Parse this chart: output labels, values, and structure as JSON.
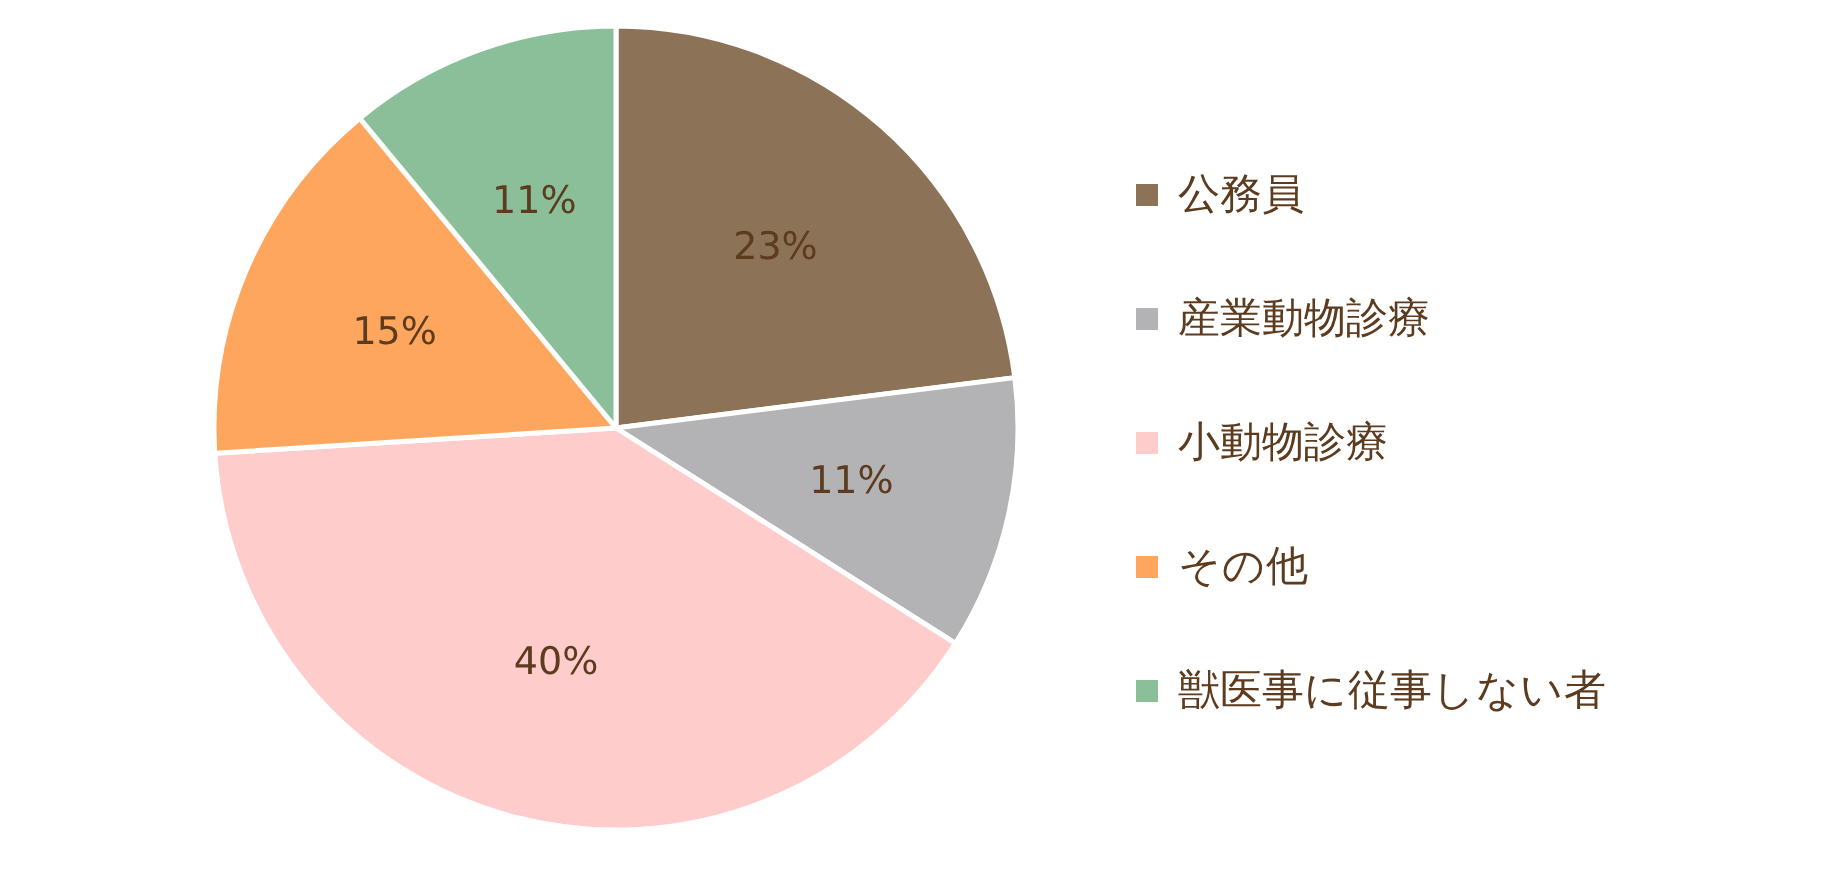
{
  "chart_data": {
    "type": "pie",
    "categories": [
      "公務員",
      "産業動物診療",
      "小動物診療",
      "その他",
      "獣医事に従事しない者"
    ],
    "values": [
      23,
      11,
      40,
      15,
      11
    ],
    "colors": [
      "#8c7357",
      "#b3b3b5",
      "#ffcccc",
      "#ffa65e",
      "#8abf99"
    ],
    "value_labels": [
      "23%",
      "11%",
      "40%",
      "15%",
      "11%"
    ],
    "legend": "right"
  }
}
